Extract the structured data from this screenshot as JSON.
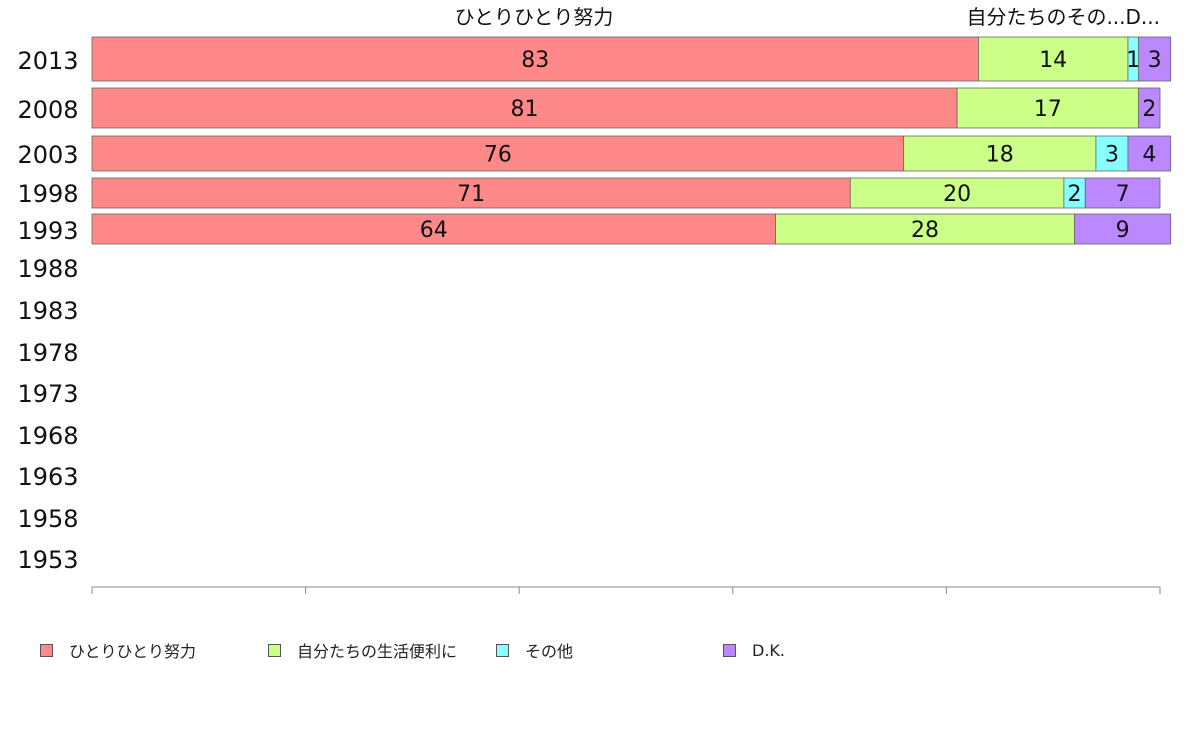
{
  "chart_data": {
    "type": "bar",
    "orientation": "horizontal",
    "stacked": true,
    "categories": [
      "2013",
      "2008",
      "2003",
      "1998",
      "1993",
      "1988",
      "1983",
      "1978",
      "1973",
      "1968",
      "1963",
      "1958",
      "1953"
    ],
    "series": [
      {
        "name": "ひとりひとり努力",
        "color": "#ff8888",
        "values": [
          83,
          81,
          76,
          71,
          64,
          null,
          null,
          null,
          null,
          null,
          null,
          null,
          null
        ]
      },
      {
        "name": "自分たちの生活便利に",
        "color": "#ccff88",
        "values": [
          14,
          17,
          18,
          20,
          28,
          null,
          null,
          null,
          null,
          null,
          null,
          null,
          null
        ]
      },
      {
        "name": "その他",
        "color": "#88ffff",
        "values": [
          1,
          0,
          3,
          2,
          0,
          null,
          null,
          null,
          null,
          null,
          null,
          null,
          null
        ]
      },
      {
        "name": "D.K.",
        "color": "#bb88ff",
        "values": [
          3,
          2,
          4,
          7,
          9,
          null,
          null,
          null,
          null,
          null,
          null,
          null,
          null
        ]
      }
    ],
    "top_labels": [
      "ひとりひとり努力",
      "自分たちのその...D..."
    ],
    "xlim": [
      0,
      100
    ],
    "xticks": [
      "0",
      "20",
      "40",
      "60",
      "80",
      "100"
    ],
    "grid": false,
    "legend_position": "bottom"
  }
}
